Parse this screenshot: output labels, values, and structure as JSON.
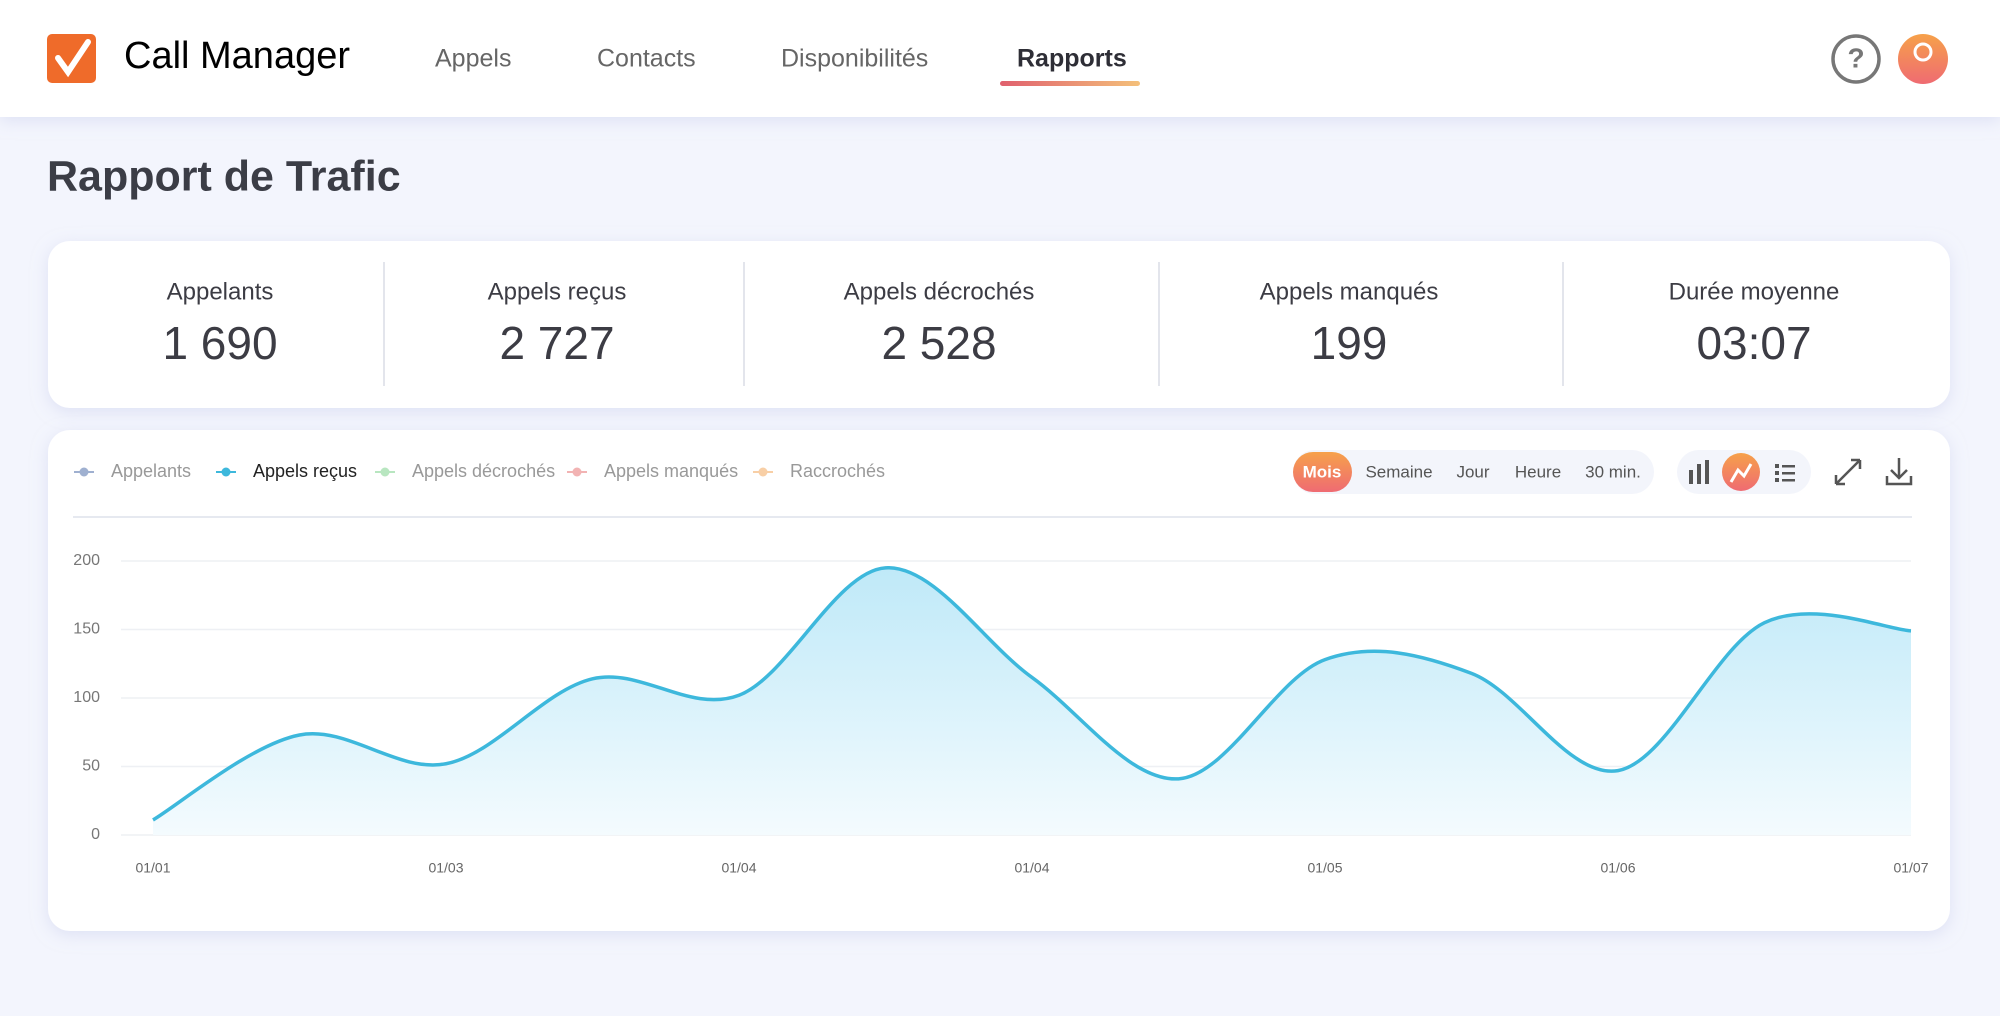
{
  "header": {
    "app_name": "Call Manager",
    "nav": [
      "Appels",
      "Contacts",
      "Disponibilités",
      "Rapports"
    ],
    "active_nav": 3,
    "help": "?"
  },
  "page_title": "Rapport de Trafic",
  "stats": [
    {
      "label": "Appelants",
      "value": "1 690"
    },
    {
      "label": "Appels reçus",
      "value": "2 727"
    },
    {
      "label": "Appels décrochés",
      "value": "2 528"
    },
    {
      "label": "Appels manqués",
      "value": "199"
    },
    {
      "label": "Durée moyenne",
      "value": "03:07"
    }
  ],
  "legend": [
    {
      "name": "Appelants",
      "color": "#9fb0d0",
      "active": false
    },
    {
      "name": "Appels reçus",
      "color": "#3db8dc",
      "active": true
    },
    {
      "name": "Appels décrochés",
      "color": "#b8e6c0",
      "active": false
    },
    {
      "name": "Appels manqués",
      "color": "#f2b3b3",
      "active": false
    },
    {
      "name": "Raccrochés",
      "color": "#f8cfa6",
      "active": false
    }
  ],
  "periods": [
    "Mois",
    "Semaine",
    "Jour",
    "Heure",
    "30 min."
  ],
  "active_period": 0,
  "chart_data": {
    "type": "area",
    "categories": [
      "01/01",
      null,
      "01/03",
      null,
      "01/04",
      null,
      "01/04",
      null,
      "01/05",
      null,
      "01/06",
      null,
      "01/07"
    ],
    "series": [
      {
        "name": "Appels reçus",
        "color": "#3db8dc",
        "values": [
          11,
          73,
          52,
          114,
          102,
          195,
          115,
          41,
          128,
          118,
          47,
          155,
          149
        ]
      }
    ],
    "ylim": [
      0,
      200
    ],
    "yticks": [
      0,
      50,
      100,
      150,
      200
    ],
    "grid": true
  }
}
